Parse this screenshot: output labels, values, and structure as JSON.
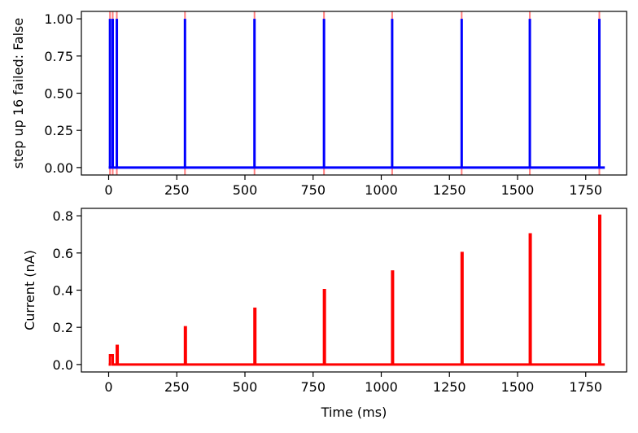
{
  "figure": {
    "background": "#ffffff"
  },
  "chart_data": [
    {
      "type": "line",
      "title": "",
      "xlabel": "",
      "ylabel": "step up 16 failed: False",
      "xlim": [
        -100,
        1900
      ],
      "ylim": [
        -0.05,
        1.05
      ],
      "xticks": [
        0,
        250,
        500,
        750,
        1000,
        1250,
        1500,
        1750
      ],
      "yticks": [
        0.0,
        0.25,
        0.5,
        0.75,
        1.0
      ],
      "xtick_labels": [
        "0",
        "250",
        "500",
        "750",
        "1000",
        "1250",
        "1500",
        "1750"
      ],
      "ytick_labels": [
        "0.00",
        "0.25",
        "0.50",
        "0.75",
        "1.00"
      ],
      "grid": false,
      "vlines": {
        "x": [
          5,
          15,
          30,
          280,
          535,
          790,
          1040,
          1295,
          1545,
          1800
        ],
        "color": "#ff7f7f",
        "ymin": -0.05,
        "ymax": 1.05
      },
      "series": [
        {
          "color": "#0000ff",
          "x": [
            0,
            5,
            5,
            5,
            5,
            15,
            15,
            15,
            15,
            30,
            30,
            30,
            30,
            280,
            280,
            280,
            280,
            535,
            535,
            535,
            535,
            790,
            790,
            790,
            790,
            1040,
            1040,
            1040,
            1040,
            1295,
            1295,
            1295,
            1295,
            1545,
            1545,
            1545,
            1545,
            1800,
            1800,
            1800,
            1800,
            1820
          ],
          "y": [
            0,
            0,
            1,
            1,
            0,
            0,
            1,
            1,
            0,
            0,
            1,
            1,
            0,
            0,
            1,
            1,
            0,
            0,
            1,
            1,
            0,
            0,
            1,
            1,
            0,
            0,
            1,
            1,
            0,
            0,
            1,
            1,
            0,
            0,
            1,
            1,
            0,
            0,
            1,
            1,
            0,
            0
          ]
        }
      ]
    },
    {
      "type": "line",
      "title": "",
      "xlabel": "Time (ms)",
      "ylabel": "Current (nA)",
      "xlim": [
        -100,
        1900
      ],
      "ylim": [
        -0.04,
        0.84
      ],
      "xticks": [
        0,
        250,
        500,
        750,
        1000,
        1250,
        1500,
        1750
      ],
      "yticks": [
        0.0,
        0.2,
        0.4,
        0.6,
        0.8
      ],
      "xtick_labels": [
        "0",
        "250",
        "500",
        "750",
        "1000",
        "1250",
        "1500",
        "1750"
      ],
      "ytick_labels": [
        "0.0",
        "0.2",
        "0.4",
        "0.6",
        "0.8"
      ],
      "grid": false,
      "series": [
        {
          "color": "#ff0000",
          "x": [
            0,
            5,
            5,
            15,
            15,
            30,
            30,
            33,
            33,
            280,
            280,
            283,
            283,
            535,
            535,
            538,
            538,
            790,
            790,
            793,
            793,
            1040,
            1040,
            1043,
            1043,
            1295,
            1295,
            1298,
            1298,
            1545,
            1545,
            1548,
            1548,
            1800,
            1800,
            1803,
            1803,
            1820
          ],
          "y": [
            0,
            0,
            0.05,
            0.05,
            0,
            0,
            0.1,
            0.1,
            0,
            0,
            0.2,
            0.2,
            0,
            0,
            0.3,
            0.3,
            0,
            0,
            0.4,
            0.4,
            0,
            0,
            0.5,
            0.5,
            0,
            0,
            0.6,
            0.6,
            0,
            0,
            0.7,
            0.7,
            0,
            0,
            0.8,
            0.8,
            0,
            0
          ]
        }
      ]
    }
  ]
}
